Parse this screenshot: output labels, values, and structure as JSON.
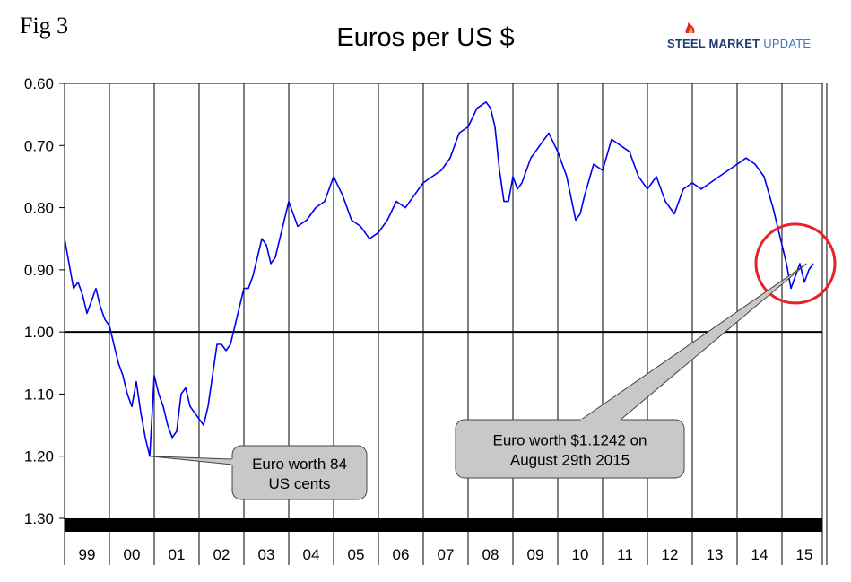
{
  "figure_label": "Fig 3",
  "logo": {
    "part1": "STEEL MARKET",
    "part2": "UPDATE"
  },
  "colors": {
    "line": "#0000ee",
    "highlight_circle": "#e8202a",
    "callout_fill": "#c8c8c8",
    "axis": "#000000"
  },
  "chart_data": {
    "type": "line",
    "title": "Euros per US $",
    "xlabel": "",
    "ylabel": "",
    "y_inverted": true,
    "ylim": [
      0.6,
      1.3
    ],
    "ytick_labels": [
      "0.60",
      "0.70",
      "0.80",
      "0.90",
      "1.00",
      "1.10",
      "1.20",
      "1.30"
    ],
    "xlim": [
      1999.0,
      2015.9
    ],
    "x_categories": [
      "99",
      "00",
      "01",
      "02",
      "03",
      "04",
      "05",
      "06",
      "07",
      "08",
      "09",
      "10",
      "11",
      "12",
      "13",
      "14",
      "15"
    ],
    "reference_line": 1.0,
    "grid": "vertical",
    "series": [
      {
        "name": "Euros per US $",
        "x": [
          1999.0,
          1999.1,
          1999.2,
          1999.3,
          1999.4,
          1999.5,
          1999.6,
          1999.7,
          1999.8,
          1999.9,
          2000.0,
          2000.1,
          2000.2,
          2000.3,
          2000.4,
          2000.5,
          2000.6,
          2000.7,
          2000.8,
          2000.9,
          2001.0,
          2001.1,
          2001.2,
          2001.3,
          2001.4,
          2001.5,
          2001.6,
          2001.7,
          2001.8,
          2001.9,
          2002.0,
          2002.1,
          2002.2,
          2002.3,
          2002.4,
          2002.5,
          2002.6,
          2002.7,
          2002.8,
          2002.9,
          2003.0,
          2003.1,
          2003.2,
          2003.3,
          2003.4,
          2003.5,
          2003.6,
          2003.7,
          2003.8,
          2003.9,
          2004.0,
          2004.2,
          2004.4,
          2004.6,
          2004.8,
          2005.0,
          2005.2,
          2005.4,
          2005.6,
          2005.8,
          2006.0,
          2006.2,
          2006.4,
          2006.6,
          2006.8,
          2007.0,
          2007.2,
          2007.4,
          2007.6,
          2007.8,
          2008.0,
          2008.2,
          2008.4,
          2008.5,
          2008.6,
          2008.7,
          2008.8,
          2008.9,
          2009.0,
          2009.1,
          2009.2,
          2009.3,
          2009.4,
          2009.5,
          2009.6,
          2009.8,
          2010.0,
          2010.2,
          2010.4,
          2010.5,
          2010.6,
          2010.8,
          2011.0,
          2011.2,
          2011.4,
          2011.6,
          2011.8,
          2012.0,
          2012.2,
          2012.4,
          2012.6,
          2012.8,
          2013.0,
          2013.2,
          2013.4,
          2013.6,
          2013.8,
          2014.0,
          2014.2,
          2014.4,
          2014.6,
          2014.8,
          2015.0,
          2015.1,
          2015.2,
          2015.3,
          2015.4,
          2015.5,
          2015.6,
          2015.7
        ],
        "y": [
          0.85,
          0.89,
          0.93,
          0.92,
          0.94,
          0.97,
          0.95,
          0.93,
          0.96,
          0.98,
          0.99,
          1.02,
          1.05,
          1.07,
          1.1,
          1.12,
          1.08,
          1.13,
          1.17,
          1.2,
          1.07,
          1.1,
          1.12,
          1.15,
          1.17,
          1.16,
          1.1,
          1.09,
          1.12,
          1.13,
          1.14,
          1.15,
          1.12,
          1.07,
          1.02,
          1.02,
          1.03,
          1.02,
          0.99,
          0.96,
          0.93,
          0.93,
          0.91,
          0.88,
          0.85,
          0.86,
          0.89,
          0.88,
          0.85,
          0.82,
          0.79,
          0.83,
          0.82,
          0.8,
          0.79,
          0.75,
          0.78,
          0.82,
          0.83,
          0.85,
          0.84,
          0.82,
          0.79,
          0.8,
          0.78,
          0.76,
          0.75,
          0.74,
          0.72,
          0.68,
          0.67,
          0.64,
          0.63,
          0.64,
          0.67,
          0.74,
          0.79,
          0.79,
          0.75,
          0.77,
          0.76,
          0.74,
          0.72,
          0.71,
          0.7,
          0.68,
          0.71,
          0.75,
          0.82,
          0.81,
          0.78,
          0.73,
          0.74,
          0.69,
          0.7,
          0.71,
          0.75,
          0.77,
          0.75,
          0.79,
          0.81,
          0.77,
          0.76,
          0.77,
          0.76,
          0.75,
          0.74,
          0.73,
          0.72,
          0.73,
          0.75,
          0.8,
          0.86,
          0.89,
          0.93,
          0.91,
          0.89,
          0.92,
          0.9,
          0.89
        ]
      }
    ],
    "annotations": [
      {
        "text_line1": "Euro worth 84",
        "text_line2": "US cents",
        "point_x": 2000.9,
        "point_y": 1.2
      },
      {
        "text_line1": "Euro worth $1.1242 on",
        "text_line2": "August 29th 2015",
        "point_x": 2015.55,
        "point_y": 0.89
      }
    ],
    "highlight": {
      "center_x": 2015.3,
      "center_y": 0.89
    }
  }
}
